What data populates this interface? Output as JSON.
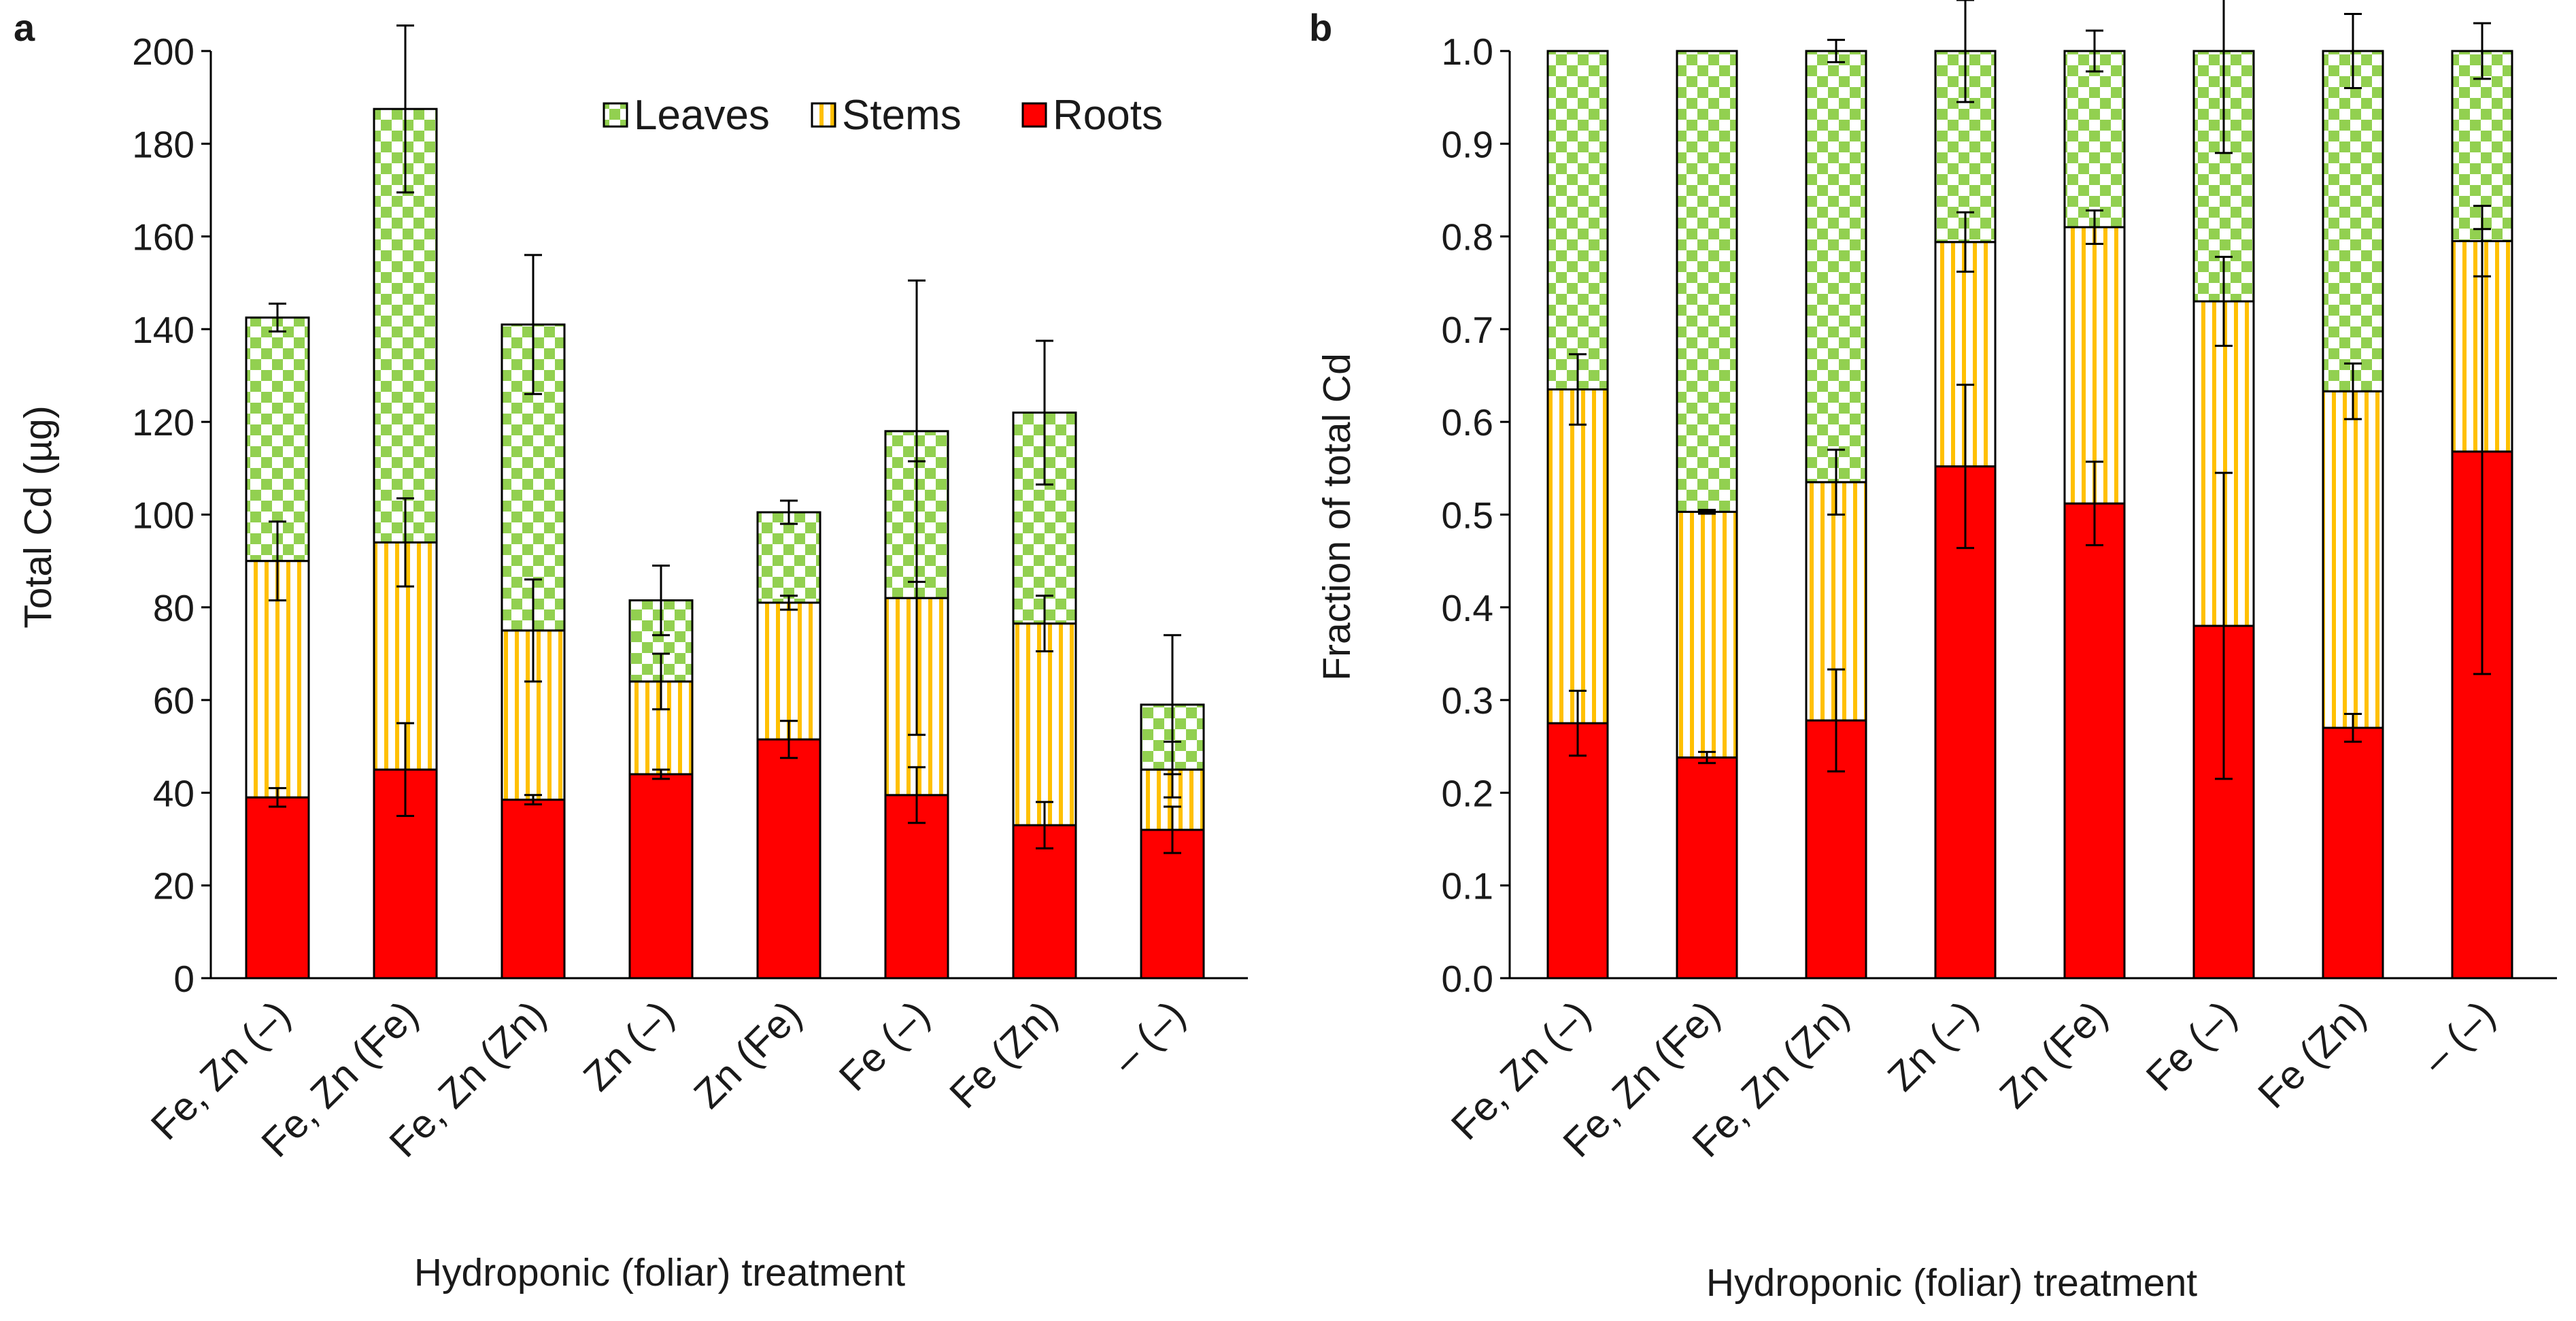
{
  "colors": {
    "roots": "#ff0000",
    "stems_fill": "#ffffff",
    "stems_stripe": "#ffc000",
    "leaves_a": "#92d050",
    "leaves_b": "#ffffff",
    "outline": "#000000"
  },
  "chart_data": [
    {
      "panel": "a",
      "type": "bar",
      "stacked": true,
      "title": "",
      "xlabel": "Hydroponic (foliar) treatment",
      "ylabel": "Total Cd (µg)",
      "ylim": [
        0,
        200
      ],
      "yticks": [
        0,
        20,
        40,
        60,
        80,
        100,
        120,
        140,
        160,
        180,
        200
      ],
      "ytick_labels": [
        "0",
        "20",
        "40",
        "60",
        "80",
        "100",
        "120",
        "140",
        "160",
        "180",
        "200"
      ],
      "categories": [
        "Fe, Zn (–)",
        "Fe, Zn (Fe)",
        "Fe, Zn (Zn)",
        "Zn (–)",
        "Zn (Fe)",
        "Fe (–)",
        "Fe (Zn)",
        "– (–)"
      ],
      "legend": [
        "Leaves",
        "Stems",
        "Roots"
      ],
      "legend_position": "top-right",
      "series": [
        {
          "name": "Roots",
          "pattern": "solid",
          "values": [
            39,
            45,
            38.5,
            44,
            51.5,
            39.5,
            33,
            32
          ],
          "err": [
            2,
            10,
            1,
            1,
            4,
            6,
            5,
            5
          ]
        },
        {
          "name": "Stems",
          "pattern": "vertical-stripes",
          "values": [
            51,
            49,
            36.5,
            20,
            29.5,
            42.5,
            43.5,
            13
          ],
          "err": [
            8.5,
            9.5,
            11,
            6,
            1.5,
            29.5,
            6,
            6
          ]
        },
        {
          "name": "Leaves",
          "pattern": "checkerboard",
          "values": [
            52.5,
            93.5,
            66,
            17.5,
            19.5,
            36,
            45.5,
            14
          ],
          "err": [
            3,
            18,
            15,
            7.5,
            2.5,
            32.5,
            15.5,
            15
          ]
        }
      ]
    },
    {
      "panel": "b",
      "type": "bar",
      "stacked": true,
      "title": "",
      "xlabel": "Hydroponic (foliar) treatment",
      "ylabel": "Fraction of total Cd",
      "ylim": [
        0,
        1
      ],
      "yticks": [
        0,
        0.1,
        0.2,
        0.3,
        0.4,
        0.5,
        0.6,
        0.7,
        0.8,
        0.9,
        1.0
      ],
      "ytick_labels": [
        "0.0",
        "0.1",
        "0.2",
        "0.3",
        "0.4",
        "0.5",
        "0.6",
        "0.7",
        "0.8",
        "0.9",
        "1.0"
      ],
      "categories": [
        "Fe, Zn (–)",
        "Fe, Zn (Fe)",
        "Fe, Zn (Zn)",
        "Zn (–)",
        "Zn (Fe)",
        "Fe (–)",
        "Fe (Zn)",
        "– (–)"
      ],
      "series": [
        {
          "name": "Roots",
          "pattern": "solid",
          "values": [
            0.275,
            0.238,
            0.278,
            0.552,
            0.512,
            0.38,
            0.27,
            0.568
          ],
          "err": [
            0.035,
            0.006,
            0.055,
            0.088,
            0.045,
            0.165,
            0.015,
            0.24
          ]
        },
        {
          "name": "Stems",
          "pattern": "vertical-stripes",
          "values": [
            0.36,
            0.265,
            0.257,
            0.242,
            0.298,
            0.35,
            0.363,
            0.227
          ],
          "err": [
            0.038,
            0.002,
            0.035,
            0.032,
            0.018,
            0.048,
            0.03,
            0.038
          ]
        },
        {
          "name": "Leaves",
          "pattern": "checkerboard",
          "values": [
            0.365,
            0.497,
            0.465,
            0.206,
            0.19,
            0.27,
            0.367,
            0.205
          ],
          "err": [
            0.0,
            0.0,
            0.012,
            0.055,
            0.022,
            0.11,
            0.04,
            0.03
          ]
        }
      ]
    }
  ]
}
